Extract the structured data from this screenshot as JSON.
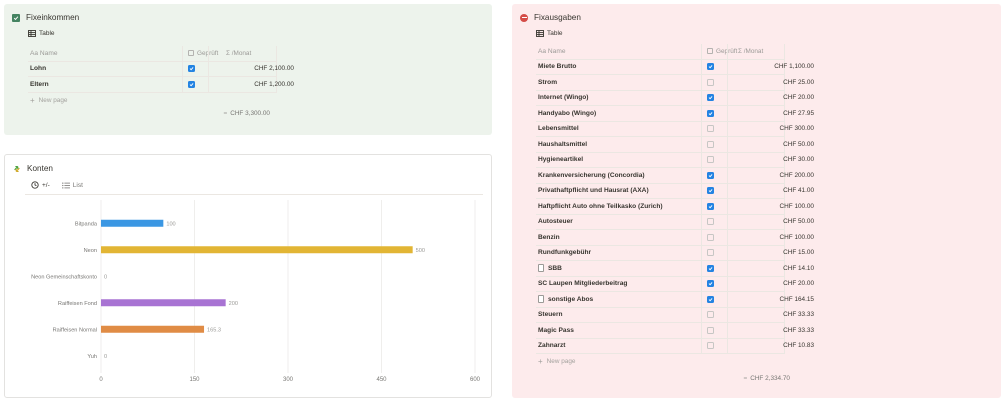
{
  "income": {
    "title": "Fixeinkommen",
    "view_label": "Table",
    "columns": {
      "name": "Aa Name",
      "checked": "Geprüft",
      "amount": "Σ /Monat"
    },
    "rows": [
      {
        "name": "Lohn",
        "checked": true,
        "amount": "CHF 2,100.00"
      },
      {
        "name": "Eltern",
        "checked": true,
        "amount": "CHF 1,200.00"
      }
    ],
    "new_page": "New page",
    "sum_label": "=",
    "sum_value": "CHF 3,300.00"
  },
  "konten": {
    "title": "Konten",
    "tabs": [
      {
        "label": "+/-",
        "icon": "clock-icon"
      },
      {
        "label": "List",
        "icon": "list-icon"
      }
    ]
  },
  "chart_data": {
    "type": "bar",
    "orientation": "horizontal",
    "categories": [
      "Bitpanda",
      "Neon",
      "Neon Gemeinschaftskonto",
      "Raiffeisen Fond",
      "Raiffeisen Normal",
      "Yuh"
    ],
    "values": [
      100,
      500,
      0,
      200,
      165.3,
      0
    ],
    "value_labels": [
      "100",
      "500",
      "0",
      "200",
      "165.3",
      "0"
    ],
    "colors": [
      "#3b97e3",
      "#e2b534",
      "#9b9a97",
      "#a873d3",
      "#e08c45",
      "#9b9a97"
    ],
    "xlim": [
      0,
      600
    ],
    "xticks": [
      0,
      150,
      300,
      450,
      600
    ],
    "grid": true
  },
  "expense": {
    "title": "Fixausgaben",
    "view_label": "Table",
    "columns": {
      "name": "Aa Name",
      "checked": "Geprüft",
      "amount": "Σ /Monat"
    },
    "rows": [
      {
        "name": "Miete Brutto",
        "checked": true,
        "amount": "CHF 1,100.00",
        "page_icon": false
      },
      {
        "name": "Strom",
        "checked": false,
        "amount": "CHF 25.00",
        "page_icon": false
      },
      {
        "name": "Internet (Wingo)",
        "checked": true,
        "amount": "CHF 20.00",
        "page_icon": false
      },
      {
        "name": "Handyabo (Wingo)",
        "checked": true,
        "amount": "CHF 27.95",
        "page_icon": false
      },
      {
        "name": "Lebensmittel",
        "checked": false,
        "amount": "CHF 300.00",
        "page_icon": false
      },
      {
        "name": "Haushaltsmittel",
        "checked": false,
        "amount": "CHF 50.00",
        "page_icon": false
      },
      {
        "name": "Hygieneartikel",
        "checked": false,
        "amount": "CHF 30.00",
        "page_icon": false
      },
      {
        "name": "Krankenversicherung (Concordia)",
        "checked": true,
        "amount": "CHF 200.00",
        "page_icon": false
      },
      {
        "name": "Privathaftpflicht und Hausrat (AXA)",
        "checked": true,
        "amount": "CHF 41.00",
        "page_icon": false
      },
      {
        "name": "Haftpflicht Auto ohne Teilkasko (Zurich)",
        "checked": true,
        "amount": "CHF 100.00",
        "page_icon": false
      },
      {
        "name": "Autosteuer",
        "checked": false,
        "amount": "CHF 50.00",
        "page_icon": false
      },
      {
        "name": "Benzin",
        "checked": false,
        "amount": "CHF 100.00",
        "page_icon": false
      },
      {
        "name": "Rundfunkgebühr",
        "checked": false,
        "amount": "CHF 15.00",
        "page_icon": false
      },
      {
        "name": "SBB",
        "checked": true,
        "amount": "CHF 14.10",
        "page_icon": true
      },
      {
        "name": "SC Laupen Mitgliederbeitrag",
        "checked": true,
        "amount": "CHF 20.00",
        "page_icon": false
      },
      {
        "name": "sonstige Abos",
        "checked": true,
        "amount": "CHF 164.15",
        "page_icon": true
      },
      {
        "name": "Steuern",
        "checked": false,
        "amount": "CHF 33.33",
        "page_icon": false
      },
      {
        "name": "Magic Pass",
        "checked": false,
        "amount": "CHF 33.33",
        "page_icon": false
      },
      {
        "name": "Zahnarzt",
        "checked": false,
        "amount": "CHF 10.83",
        "page_icon": false
      }
    ],
    "new_page": "New page",
    "sum_label": "=",
    "sum_value": "CHF 2,334.70"
  }
}
